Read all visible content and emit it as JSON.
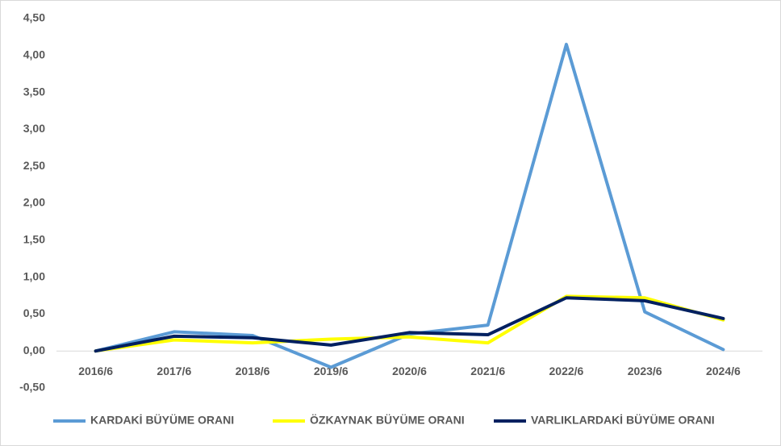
{
  "chart_data": {
    "type": "line",
    "categories": [
      "2016/6",
      "2017/6",
      "2018/6",
      "2019/6",
      "2020/6",
      "2021/6",
      "2022/6",
      "2023/6",
      "2024/6"
    ],
    "series": [
      {
        "name": "KARDAKİ BÜYÜME ORANI",
        "color": "#5b9bd5",
        "values": [
          0,
          0.26,
          0.21,
          -0.22,
          0.23,
          0.35,
          4.15,
          0.53,
          0.02
        ]
      },
      {
        "name": "ÖZKAYNAK BÜYÜME ORANI",
        "color": "#ffff00",
        "values": [
          0,
          0.15,
          0.11,
          0.16,
          0.19,
          0.11,
          0.74,
          0.72,
          0.42
        ]
      },
      {
        "name": "VARLIKLARDAKİ BÜYÜME ORANI",
        "color": "#002060",
        "values": [
          0,
          0.2,
          0.18,
          0.08,
          0.25,
          0.22,
          0.72,
          0.68,
          0.44
        ]
      }
    ],
    "ylim": [
      -0.5,
      4.5
    ],
    "yticks": [
      {
        "value": -0.5,
        "label": "-0,50"
      },
      {
        "value": 0,
        "label": "0,00"
      },
      {
        "value": 0.5,
        "label": "0,50"
      },
      {
        "value": 1,
        "label": "1,00"
      },
      {
        "value": 1.5,
        "label": "1,50"
      },
      {
        "value": 2,
        "label": "2,00"
      },
      {
        "value": 2.5,
        "label": "2,50"
      },
      {
        "value": 3,
        "label": "3,00"
      },
      {
        "value": 3.5,
        "label": "3,50"
      },
      {
        "value": 4,
        "label": "4,00"
      },
      {
        "value": 4.5,
        "label": "4,50"
      }
    ],
    "legend": "bottom"
  }
}
